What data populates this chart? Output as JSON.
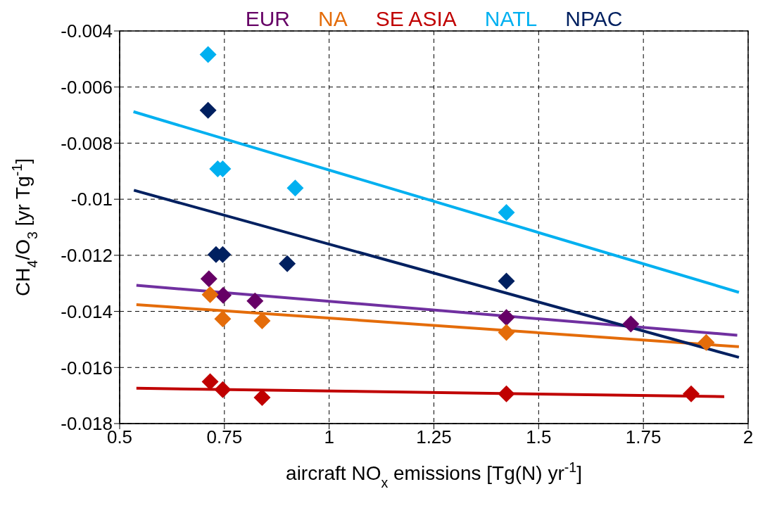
{
  "chart_data": {
    "type": "scatter",
    "xlabel": "aircraft NO$_{x}$ emissions [Tg(N) yr$^{-1}$]",
    "ylabel": "CH$_{4}$/O$_{3}$ [yr Tg$^{-1}$]",
    "xlim": [
      0.5,
      2
    ],
    "xticks": [
      0.5,
      0.75,
      1,
      1.25,
      1.5,
      1.75,
      2
    ],
    "ylim": [
      -0.018,
      -0.004
    ],
    "yticks": [
      -0.018,
      -0.016,
      -0.014,
      -0.012,
      -0.01,
      -0.008,
      -0.006,
      -0.004
    ],
    "grid": true,
    "legend": "top",
    "series": [
      {
        "type": "scatter",
        "name": "EUR",
        "color": "#660066",
        "marker": "diamond",
        "x": [
          0.713,
          0.747,
          0.823,
          1.423,
          1.72
        ],
        "values": [
          -0.01284,
          -0.01343,
          -0.01363,
          -0.01422,
          -0.01445
        ]
      },
      {
        "type": "scatter",
        "name": "NA",
        "color": "#e46c0a",
        "marker": "diamond",
        "x": [
          0.716,
          0.746,
          0.84,
          1.423,
          1.9
        ],
        "values": [
          -0.0134,
          -0.01427,
          -0.01434,
          -0.01475,
          -0.01511
        ]
      },
      {
        "type": "scatter",
        "name": "SE ASIA",
        "color": "#c00000",
        "marker": "diamond",
        "x": [
          0.716,
          0.746,
          0.84,
          1.423,
          1.864
        ],
        "values": [
          -0.01651,
          -0.01679,
          -0.01707,
          -0.01694,
          -0.01694
        ]
      },
      {
        "type": "scatter",
        "name": "NATL",
        "color": "#00b0f0",
        "marker": "diamond",
        "x": [
          0.711,
          0.734,
          0.746,
          0.919,
          1.423
        ],
        "values": [
          -0.00484,
          -0.00892,
          -0.00892,
          -0.0096,
          -0.01047
        ]
      },
      {
        "type": "scatter",
        "name": "NPAC",
        "color": "#002060",
        "marker": "diamond",
        "x": [
          0.711,
          0.73,
          0.746,
          0.9,
          1.423
        ],
        "values": [
          -0.00683,
          -0.01197,
          -0.01197,
          -0.0123,
          -0.01292
        ]
      },
      {
        "type": "line",
        "color": "#7030a0",
        "marker": "none",
        "x": [
          0.54,
          1.974
        ],
        "values": [
          -0.01307,
          -0.01485
        ]
      },
      {
        "type": "line",
        "color": "#e46c0a",
        "marker": "none",
        "x": [
          0.54,
          1.978
        ],
        "values": [
          -0.01376,
          -0.01526
        ]
      },
      {
        "type": "line",
        "color": "#c00000",
        "marker": "none",
        "x": [
          0.54,
          1.943
        ],
        "values": [
          -0.01674,
          -0.01704
        ]
      },
      {
        "type": "line",
        "color": "#00b0f0",
        "marker": "none",
        "x": [
          0.533,
          1.978
        ],
        "values": [
          -0.00688,
          -0.01332
        ]
      },
      {
        "type": "line",
        "color": "#002060",
        "marker": "none",
        "x": [
          0.534,
          1.978
        ],
        "values": [
          -0.00968,
          -0.01564
        ]
      }
    ]
  }
}
